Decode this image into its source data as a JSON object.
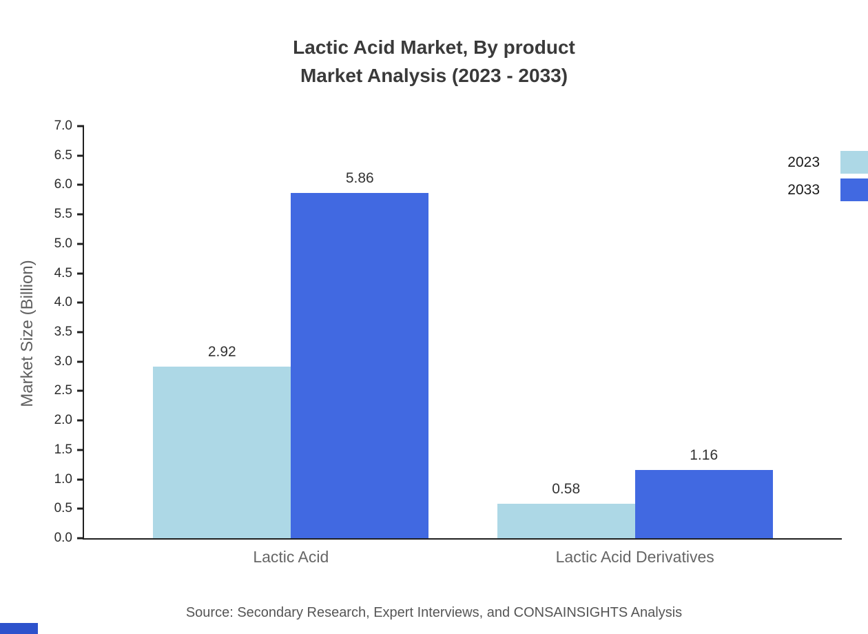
{
  "chart": {
    "title_line1": "Lactic Acid Market, By product",
    "title_line2": "Market Analysis (2023 - 2033)",
    "source": "Source: Secondary Research, Expert Interviews, and CONSAINSIGHTS Analysis"
  },
  "chart_data": {
    "type": "bar",
    "title": "Lactic Acid Market, By product Market Analysis (2023 - 2033)",
    "categories": [
      "Lactic Acid",
      "Lactic Acid Derivatives"
    ],
    "series": [
      {
        "name": "2023",
        "color": "#ADD8E6",
        "values": [
          2.92,
          0.58
        ]
      },
      {
        "name": "2033",
        "color": "#4169E1",
        "values": [
          5.86,
          1.16
        ]
      }
    ],
    "value_labels": [
      [
        "2.92",
        "0.58"
      ],
      [
        "5.86",
        "1.16"
      ]
    ],
    "xlabel": "",
    "ylabel": "Market Size (Billion)",
    "ylim": [
      0,
      7
    ],
    "ytick_step": 0.5,
    "ytick_format_decimals": 1,
    "grid": false,
    "legend_position": "top-right",
    "axis_color": "#1f1f1f"
  },
  "accent": {
    "bottom_bar_color": "#2d52cc"
  }
}
